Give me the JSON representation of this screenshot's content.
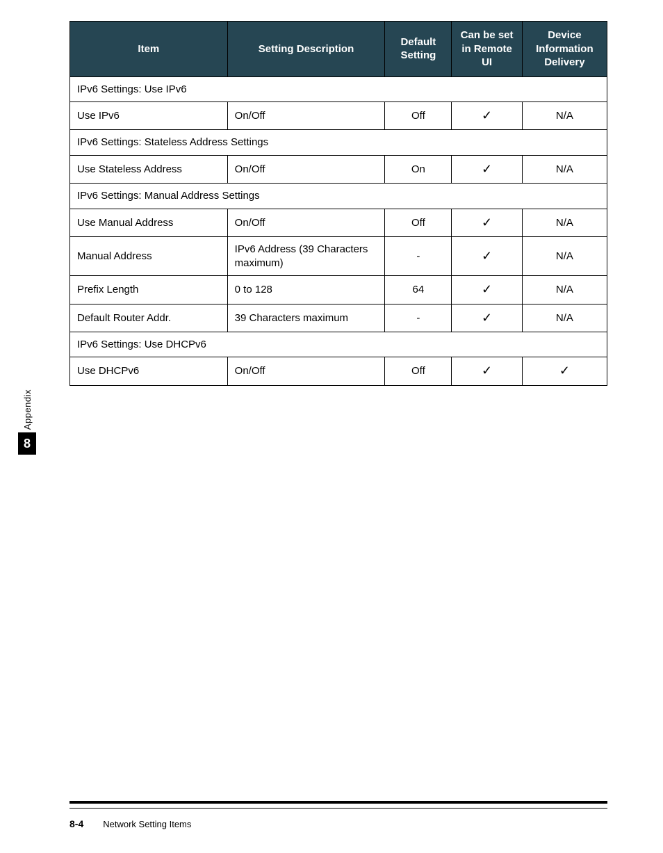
{
  "table": {
    "headers": {
      "item": "Item",
      "desc": "Setting Description",
      "default": "Default Setting",
      "remote": "Can be set in Remote UI",
      "device": "Device Information Delivery"
    },
    "header_bg": "#264653",
    "header_fg": "#ffffff",
    "border_color": "#000000",
    "sections": [
      {
        "title": "IPv6 Settings: Use IPv6",
        "rows": [
          {
            "item": "Use IPv6",
            "desc": "On/Off",
            "default": "Off",
            "remote": "✓",
            "device": "N/A"
          }
        ]
      },
      {
        "title": "IPv6 Settings: Stateless Address Settings",
        "rows": [
          {
            "item": "Use Stateless Address",
            "desc": "On/Off",
            "default": "On",
            "remote": "✓",
            "device": "N/A"
          }
        ]
      },
      {
        "title": "IPv6 Settings: Manual Address Settings",
        "rows": [
          {
            "item": "Use Manual Address",
            "desc": "On/Off",
            "default": "Off",
            "remote": "✓",
            "device": "N/A"
          },
          {
            "item": "Manual Address",
            "desc": "IPv6 Address (39 Characters maximum)",
            "default": "-",
            "remote": "✓",
            "device": "N/A"
          },
          {
            "item": "Prefix Length",
            "desc": "0 to 128",
            "default": "64",
            "remote": "✓",
            "device": "N/A"
          },
          {
            "item": "Default Router Addr.",
            "desc": "39 Characters maximum",
            "default": "-",
            "remote": "✓",
            "device": "N/A"
          }
        ]
      },
      {
        "title": "IPv6 Settings: Use DHCPv6",
        "rows": [
          {
            "item": "Use DHCPv6",
            "desc": "On/Off",
            "default": "Off",
            "remote": "✓",
            "device": "✓"
          }
        ]
      }
    ]
  },
  "sidebar": {
    "label": "Appendix",
    "number": "8",
    "box_bg": "#000000",
    "box_fg": "#ffffff"
  },
  "footer": {
    "page": "8-4",
    "title": "Network Setting Items",
    "rule_top_color": "#000000",
    "rule_bottom_color": "#000000"
  }
}
